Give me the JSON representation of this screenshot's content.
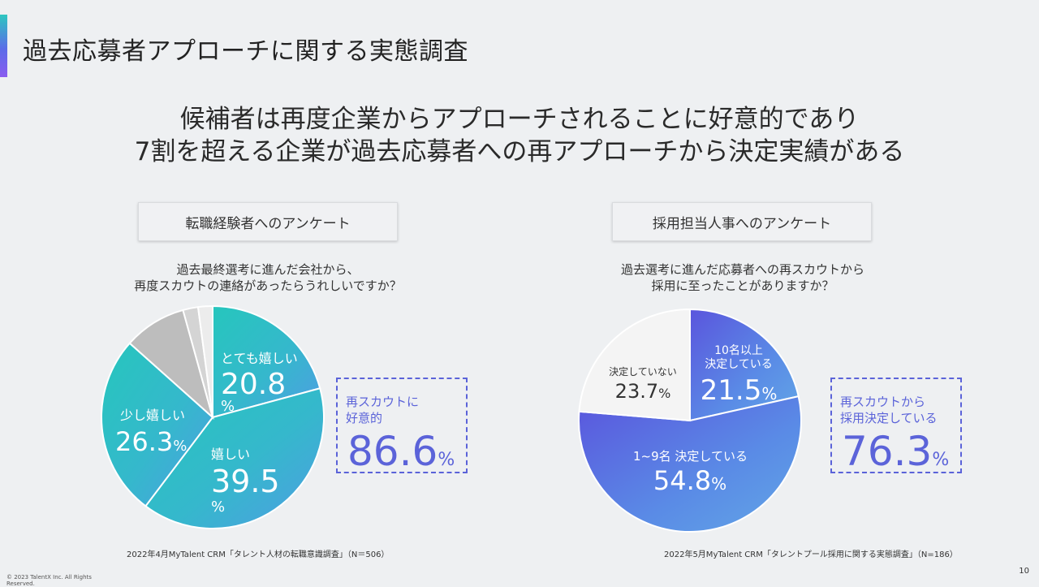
{
  "title": "過去応募者アプローチに関する実態調査",
  "headline": {
    "line1": "候補者は再度企業からアプローチされることに好意的であり",
    "line2": "7割を超える企業が過去応募者への再アプローチから決定実績がある"
  },
  "colors": {
    "accent": "#5b63d9",
    "teal": "#2ec7c0",
    "blue": "#4f7fe0",
    "gray": "#bdbdbd",
    "white_slice": "#ffffff"
  },
  "left": {
    "label": "転職経験者へのアンケート",
    "question_line1": "過去最終選考に進んだ会社から、",
    "question_line2": "再度スカウトの連絡があったらうれしいですか？",
    "callout_text_line1": "再スカウトに",
    "callout_text_line2": "好意的",
    "callout_value": "86.6",
    "callout_unit": "%",
    "source": "2022年4月MyTalent CRM「タレント人材の転職意識調査」（N＝506）"
  },
  "right": {
    "label": "採用担当人事へのアンケート",
    "question_line1": "過去選考に進んだ応募者への再スカウトから",
    "question_line2": "採用に至ったことがありますか？",
    "callout_text_line1": "再スカウトから",
    "callout_text_line2": "採用決定している",
    "callout_value": "76.3",
    "callout_unit": "%",
    "source": "2022年5月MyTalent CRM「タレントプール採用に関する実態調査」（N=186）"
  },
  "chart_data": [
    {
      "type": "pie",
      "title": "過去最終選考に進んだ会社から、再度スカウトの連絡があったらうれしいですか？",
      "slices": [
        {
          "label": "とても嬉しい",
          "value": 20.8,
          "display": "20.8",
          "unit": "%",
          "color": "#2ec7c0"
        },
        {
          "label": "嬉しい",
          "value": 39.5,
          "display": "39.5",
          "unit": "%",
          "color": "#3fb3d8"
        },
        {
          "label": "少し嬉しい",
          "value": 26.3,
          "display": "26.3",
          "unit": "%",
          "color": "#48a9dc"
        },
        {
          "label": "",
          "value": 9.1,
          "display": "",
          "unit": "",
          "color": "#bdbdbd"
        },
        {
          "label": "",
          "value": 2.2,
          "display": "",
          "unit": "",
          "color": "#d4d4d4"
        },
        {
          "label": "",
          "value": 2.1,
          "display": "",
          "unit": "",
          "color": "#ececec"
        }
      ]
    },
    {
      "type": "pie",
      "title": "過去選考に進んだ応募者への再スカウトから採用に至ったことがありますか？",
      "slices": [
        {
          "label": "10名以上 決定している",
          "value": 21.5,
          "display": "21.5",
          "unit": "%",
          "color": "#5b63d9"
        },
        {
          "label": "1~9名 決定している",
          "value": 54.8,
          "display": "54.8",
          "unit": "%",
          "color": "#5a8fe6"
        },
        {
          "label": "決定していない",
          "value": 23.7,
          "display": "23.7",
          "unit": "%",
          "color": "#f4f4f4"
        }
      ]
    }
  ],
  "page_number": "10",
  "copyright": "© 2023 TalentX Inc. All Rights Reserved."
}
